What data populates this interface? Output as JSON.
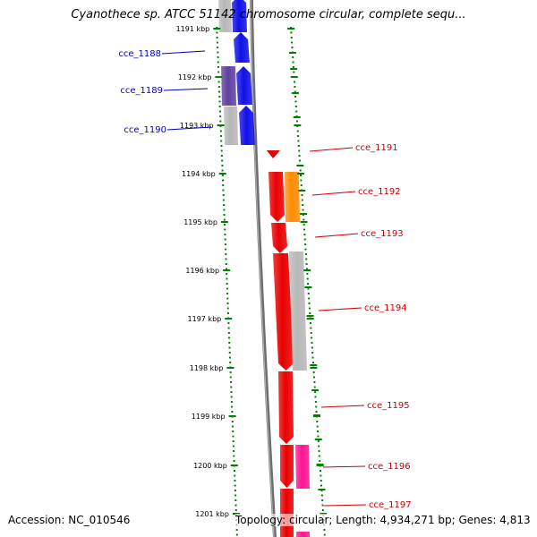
{
  "title": "Cyanothece sp. ATCC 51142 chromosome circular, complete sequ...",
  "accession_text": "Accession: NC_010546",
  "topology_text": "Topology: circular; Length: 4,934,271 bp; Genes: 4,813",
  "colors": {
    "left_strand_genes": "#1010e8",
    "right_strand_genes": "#e80000",
    "orange_gene": "#ff8c00",
    "magenta_gene": "#ff1493",
    "gray_gene": "#b8b8b8",
    "purple_gene": "#6040a0",
    "tick_green": "#008000",
    "left_label_color": "#0000c0",
    "right_label_color": "#cc0000"
  },
  "kbp_ticks": [
    "1191 kbp",
    "1192 kbp",
    "1193 kbp",
    "1194 kbp",
    "1195 kbp",
    "1196 kbp",
    "1197 kbp",
    "1198 kbp",
    "1199 kbp",
    "1200 kbp",
    "1201 kbp"
  ],
  "left_genes": [
    "cce_1188",
    "cce_1189",
    "cce_1190"
  ],
  "right_genes": [
    "cce_1191",
    "cce_1192",
    "cce_1193",
    "cce_1194",
    "cce_1195",
    "cce_1196",
    "cce_1197"
  ]
}
